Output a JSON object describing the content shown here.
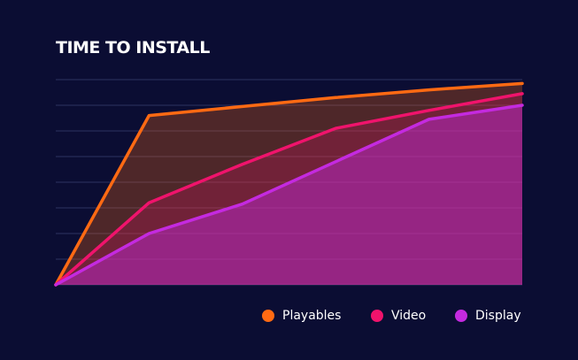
{
  "chart_data": {
    "type": "area",
    "title": "TIME TO INSTALL",
    "xlabel": "",
    "ylabel": "",
    "x": [
      0,
      1,
      2,
      3,
      4,
      5
    ],
    "ylim": [
      0,
      8
    ],
    "grid": true,
    "legend_position": "bottom-right",
    "series": [
      {
        "name": "Playables",
        "color": "#ff6a13",
        "values": [
          0,
          6.6,
          6.95,
          7.3,
          7.6,
          7.85
        ]
      },
      {
        "name": "Video",
        "color": "#f0136c",
        "values": [
          0,
          3.2,
          4.7,
          6.1,
          6.8,
          7.45
        ]
      },
      {
        "name": "Display",
        "color": "#c42ae0",
        "values": [
          0,
          2.0,
          3.15,
          4.8,
          6.45,
          7.0
        ]
      }
    ]
  },
  "colors": {
    "background": "#0b0d33",
    "gridline": "#2e3262",
    "title": "#ffffff"
  }
}
